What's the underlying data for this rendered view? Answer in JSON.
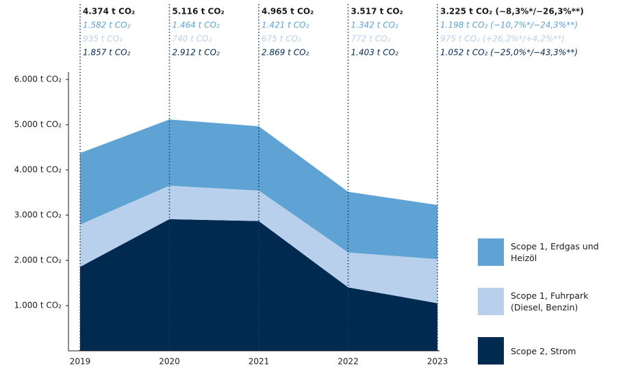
{
  "chart_data": {
    "type": "stacked_area",
    "categories": [
      "2019",
      "2020",
      "2021",
      "2022",
      "2023"
    ],
    "totals": [
      4374,
      5116,
      4965,
      3517,
      3225
    ],
    "total_labels": [
      "4.374 t CO₂",
      "5.116 t CO₂",
      "4.965 t CO₂",
      "3.517 t CO₂",
      "3.225 t CO₂ (−8,3%*/−26,3%**)"
    ],
    "series": [
      {
        "name": "Scope 2, Strom",
        "color": "#002a50",
        "values": [
          1857,
          2912,
          2869,
          1403,
          1052
        ],
        "value_labels": [
          "1.857 t CO₂",
          "2.912 t CO₂",
          "2.869 t CO₂",
          "1.403 t CO₂",
          "1.052 t CO₂ (−25,0%*/−43,3%**)"
        ]
      },
      {
        "name": "Scope 1, Fuhrpark (Diesel, Benzin)",
        "color": "#b8d0eb",
        "values": [
          935,
          740,
          675,
          772,
          975
        ],
        "value_labels": [
          "935 t CO₂",
          "740 t CO₂",
          "675 t CO₂",
          "772 t CO₂",
          "975 t CO₂ (+26,2%*/+4,2%**)"
        ]
      },
      {
        "name": "Scope 1, Erdgas und Heizöl",
        "color": "#5fa2d4",
        "values": [
          1582,
          1464,
          1421,
          1342,
          1198
        ],
        "value_labels": [
          "1.582 t CO₂",
          "1.464 t CO₂",
          "1.421 t CO₂",
          "1.342 t CO₂",
          "1.198 t CO₂ (−10,7%*/−24,3%**)"
        ]
      }
    ],
    "ylim": [
      0,
      6000
    ],
    "yticks": [
      {
        "value": 1000,
        "label": "1.000 t CO₂"
      },
      {
        "value": 2000,
        "label": "2.000 t CO₂"
      },
      {
        "value": 3000,
        "label": "3.000 t CO₂"
      },
      {
        "value": 4000,
        "label": "4.000 t CO₂"
      },
      {
        "value": 5000,
        "label": "5.000 t CO₂"
      },
      {
        "value": 6000,
        "label": "6.000 t CO₂"
      }
    ],
    "grid": false
  }
}
